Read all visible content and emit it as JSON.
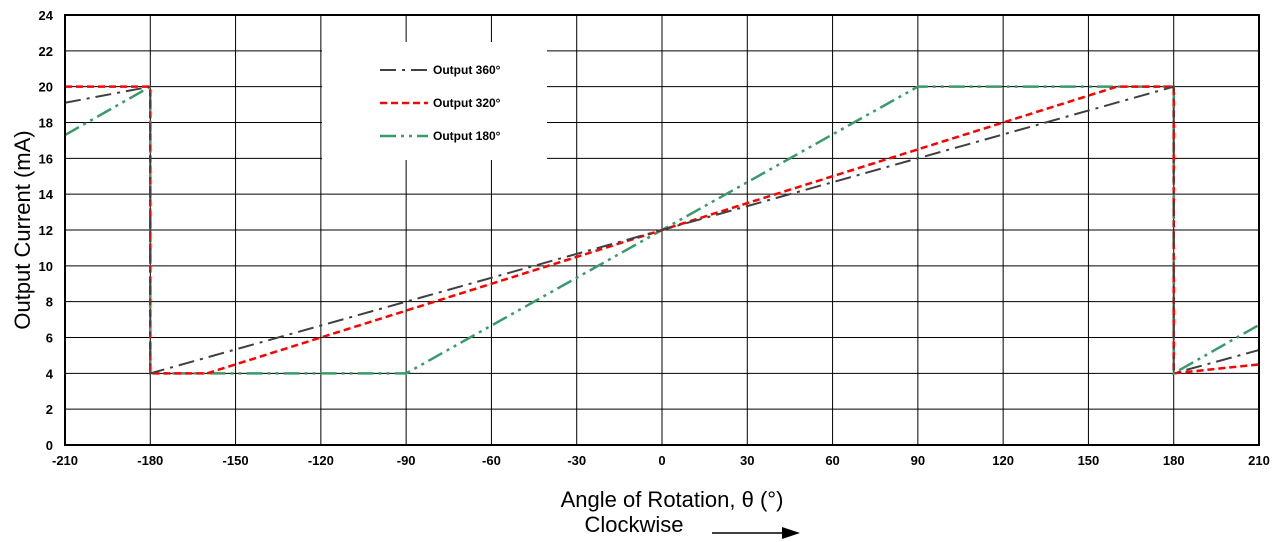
{
  "chart_data": {
    "type": "line",
    "xlabel": "Angle of Rotation, θ (°)",
    "xlabel_sub": "Clockwise",
    "ylabel": "Output Current (mA)",
    "xlim": [
      -210,
      210
    ],
    "ylim": [
      0,
      24
    ],
    "xticks": [
      "-210",
      "-180",
      "-150",
      "-120",
      "-90",
      "-60",
      "-30",
      "0",
      "30",
      "60",
      "90",
      "120",
      "150",
      "180",
      "210"
    ],
    "yticks": [
      "0",
      "2",
      "4",
      "6",
      "8",
      "10",
      "12",
      "14",
      "16",
      "18",
      "20",
      "22",
      "24"
    ],
    "grid": true,
    "legend_position": "top-left",
    "series": [
      {
        "name": "Output 360°",
        "color": "#404040",
        "dash": "dash-dot",
        "points": [
          [
            -210,
            19.1
          ],
          [
            -180,
            20
          ],
          [
            -180,
            4
          ],
          [
            180,
            20
          ],
          [
            180,
            4
          ],
          [
            210,
            5.3
          ]
        ]
      },
      {
        "name": "Output 320°",
        "color": "#ff0000",
        "dash": "dash",
        "points": [
          [
            -210,
            20
          ],
          [
            -180,
            20
          ],
          [
            -180,
            4
          ],
          [
            -160,
            4
          ],
          [
            160,
            20
          ],
          [
            180,
            20
          ],
          [
            180,
            4
          ],
          [
            210,
            4.5
          ]
        ]
      },
      {
        "name": "Output 180°",
        "color": "#3a9a6a",
        "dash": "dash-dot-dot",
        "points": [
          [
            -210,
            17.3
          ],
          [
            -180,
            20
          ],
          [
            -180,
            4
          ],
          [
            -90,
            4
          ],
          [
            90,
            20
          ],
          [
            180,
            20
          ],
          [
            180,
            4
          ],
          [
            210,
            6.7
          ]
        ]
      }
    ]
  }
}
